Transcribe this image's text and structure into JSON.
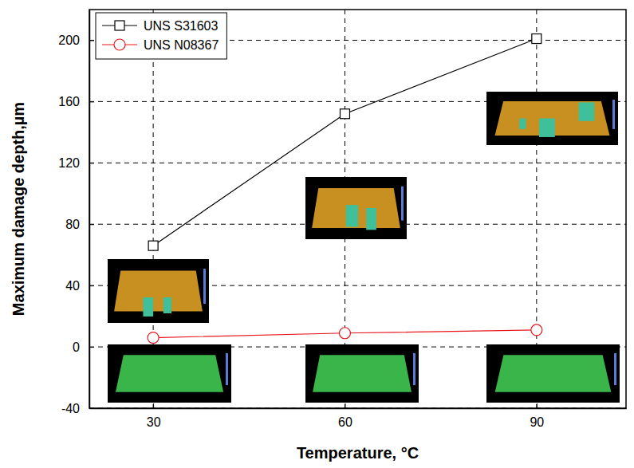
{
  "chart_data": {
    "type": "line",
    "x_label": "Temperature, °C",
    "y_label": "Maximum damage depth,µm",
    "x": [
      30,
      60,
      90
    ],
    "series": [
      {
        "name": "UNS S31603",
        "color": "#000000",
        "marker": "square",
        "values": [
          66,
          152,
          201
        ]
      },
      {
        "name": "UNS N08367",
        "color": "#e8161b",
        "marker": "circle",
        "values": [
          6,
          9,
          11
        ]
      }
    ],
    "xlim": [
      20,
      104
    ],
    "xticks": [
      30,
      60,
      90
    ],
    "ylim": [
      -40,
      220
    ],
    "yticks": [
      -40,
      0,
      40,
      80,
      120,
      160,
      200
    ],
    "grid": true,
    "legend": "upper left"
  }
}
